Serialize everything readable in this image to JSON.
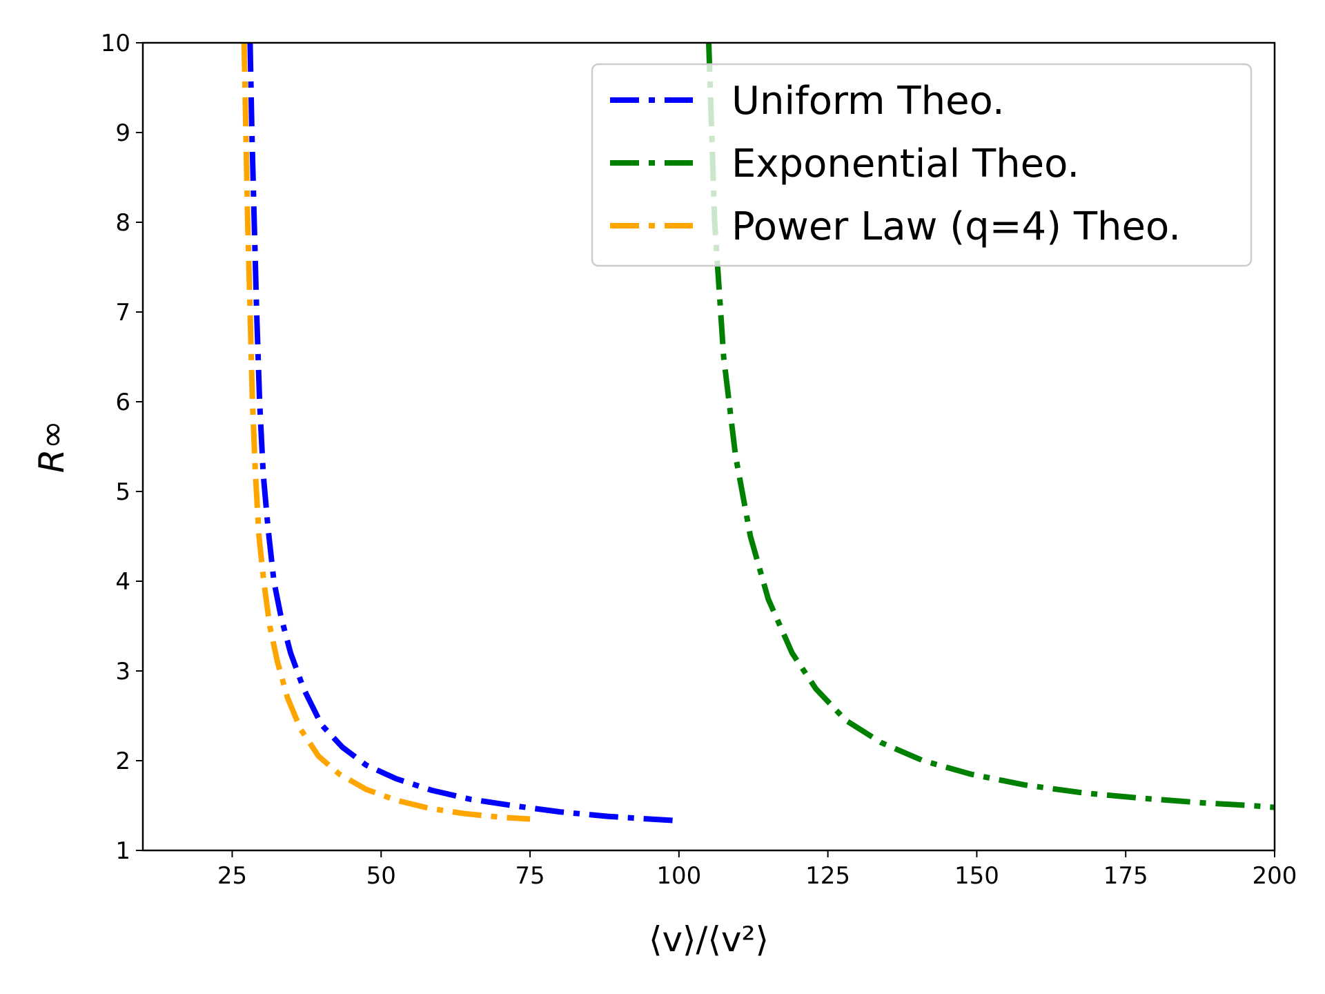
{
  "chart_data": {
    "type": "line",
    "title": "",
    "xlabel": "⟨v⟩/⟨v²⟩",
    "ylabel": "R∞",
    "xlim": [
      10,
      200
    ],
    "ylim": [
      1,
      10
    ],
    "xticks": [
      25,
      50,
      75,
      100,
      125,
      150,
      175,
      200
    ],
    "yticks": [
      1,
      2,
      3,
      4,
      5,
      6,
      7,
      8,
      9,
      10
    ],
    "grid": false,
    "legend_position": "top-right",
    "series": [
      {
        "name": "Uniform Theo.",
        "color": "#0000ff",
        "x": [
          28.0,
          28.3,
          28.7,
          29.1,
          29.6,
          30.2,
          31.0,
          32.0,
          33.2,
          34.8,
          37.0,
          40.0,
          43.5,
          47.5,
          52.5,
          58.5,
          65.0,
          72.0,
          80.0,
          88.0,
          95.0,
          100.0
        ],
        "y": [
          10.0,
          9.0,
          8.0,
          7.0,
          6.0,
          5.2,
          4.6,
          4.0,
          3.6,
          3.2,
          2.8,
          2.4,
          2.15,
          1.95,
          1.8,
          1.67,
          1.57,
          1.5,
          1.43,
          1.38,
          1.35,
          1.33
        ]
      },
      {
        "name": "Exponential Theo.",
        "color": "#008000",
        "x": [
          105.0,
          106.0,
          107.5,
          109.5,
          112.0,
          115.0,
          119.0,
          123.0,
          128.0,
          134.0,
          141.0,
          149.0,
          158.0,
          168.0,
          178.0,
          188.0,
          196.0,
          200.0
        ],
        "y": [
          10.0,
          8.0,
          6.5,
          5.4,
          4.5,
          3.8,
          3.2,
          2.8,
          2.45,
          2.2,
          2.0,
          1.85,
          1.73,
          1.64,
          1.58,
          1.53,
          1.5,
          1.48
        ]
      },
      {
        "name": "Power Law (q=4) Theo.",
        "color": "#ffa500",
        "x": [
          27.0,
          27.3,
          27.6,
          28.0,
          28.4,
          28.9,
          29.5,
          30.3,
          31.3,
          32.6,
          34.3,
          36.5,
          39.5,
          43.0,
          47.5,
          52.5,
          58.0,
          64.0,
          70.0,
          75.0
        ],
        "y": [
          10.0,
          9.0,
          8.0,
          7.0,
          6.0,
          5.2,
          4.5,
          4.0,
          3.5,
          3.1,
          2.7,
          2.35,
          2.05,
          1.85,
          1.68,
          1.56,
          1.47,
          1.41,
          1.37,
          1.35
        ]
      }
    ]
  }
}
